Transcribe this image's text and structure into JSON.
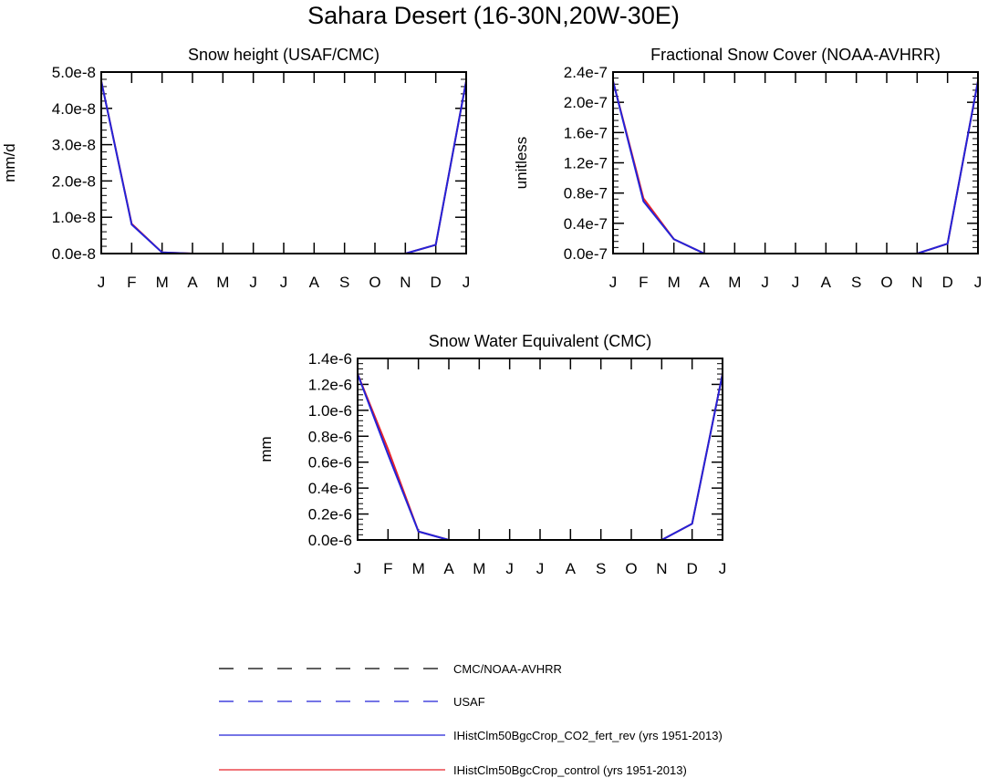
{
  "figure": {
    "title": "Sahara Desert (16-30N,20W-30E)"
  },
  "chart_data": [
    {
      "type": "line",
      "title": "Snow height (USAF/CMC)",
      "ylabel": "mm/d",
      "xlabel": "",
      "categories": [
        "J",
        "F",
        "M",
        "A",
        "M",
        "J",
        "J",
        "A",
        "S",
        "O",
        "N",
        "D",
        "J"
      ],
      "ylim": [
        0,
        5e-08
      ],
      "yticks": [
        0,
        1e-08,
        2e-08,
        3e-08,
        4e-08,
        5e-08
      ],
      "ytick_labels": [
        "0.0e-8",
        "1.0e-8",
        "2.0e-8",
        "3.0e-8",
        "4.0e-8",
        "5.0e-8"
      ],
      "series": [
        {
          "name": "CMC/NOAA-AVHRR",
          "values": [
            0,
            0,
            0,
            0,
            0,
            0,
            0,
            0,
            0,
            0,
            0,
            0,
            0
          ]
        },
        {
          "name": "IHistClm50BgcCrop_control (yrs 1951-2013)",
          "values": [
            4.75e-08,
            8.2e-09,
            3e-10,
            0,
            0,
            0,
            0,
            0,
            0,
            0,
            0,
            2.4e-09,
            4.75e-08
          ]
        },
        {
          "name": "IHistClm50BgcCrop_CO2_fert_rev (yrs 1951-2013)",
          "values": [
            4.75e-08,
            8e-09,
            3e-10,
            0,
            0,
            0,
            0,
            0,
            0,
            0,
            0,
            2.4e-09,
            4.75e-08
          ]
        }
      ]
    },
    {
      "type": "line",
      "title": "Fractional Snow Cover (NOAA-AVHRR)",
      "ylabel": "unitless",
      "xlabel": "",
      "categories": [
        "J",
        "F",
        "M",
        "A",
        "M",
        "J",
        "J",
        "A",
        "S",
        "O",
        "N",
        "D",
        "J"
      ],
      "ylim": [
        0,
        2.4e-07
      ],
      "yticks": [
        0,
        4e-08,
        8e-08,
        1.2e-07,
        1.6e-07,
        2e-07,
        2.4e-07
      ],
      "ytick_labels": [
        "0.0e-7",
        "0.4e-7",
        "0.8e-7",
        "1.2e-7",
        "1.6e-7",
        "2.0e-7",
        "2.4e-7"
      ],
      "series": [
        {
          "name": "CMC/NOAA-AVHRR",
          "values": [
            0,
            0,
            0,
            0,
            0,
            0,
            0,
            0,
            0,
            0,
            0,
            0,
            0
          ]
        },
        {
          "name": "IHistClm50BgcCrop_control (yrs 1951-2013)",
          "values": [
            2.28e-07,
            7.3e-08,
            1.9e-08,
            0,
            0,
            0,
            0,
            0,
            0,
            0,
            0,
            1.3e-08,
            2.28e-07
          ]
        },
        {
          "name": "IHistClm50BgcCrop_CO2_fert_rev (yrs 1951-2013)",
          "values": [
            2.28e-07,
            6.9e-08,
            1.9e-08,
            0,
            0,
            0,
            0,
            0,
            0,
            0,
            0,
            1.3e-08,
            2.28e-07
          ]
        }
      ]
    },
    {
      "type": "line",
      "title": "Snow Water Equivalent (CMC)",
      "ylabel": "mm",
      "xlabel": "",
      "categories": [
        "J",
        "F",
        "M",
        "A",
        "M",
        "J",
        "J",
        "A",
        "S",
        "O",
        "N",
        "D",
        "J"
      ],
      "ylim": [
        0,
        1.4e-06
      ],
      "yticks": [
        0,
        2e-07,
        4e-07,
        6e-07,
        8e-07,
        1e-06,
        1.2e-06,
        1.4e-06
      ],
      "ytick_labels": [
        "0.0e-6",
        "0.2e-6",
        "0.4e-6",
        "0.6e-6",
        "0.8e-6",
        "1.0e-6",
        "1.2e-6",
        "1.4e-6"
      ],
      "series": [
        {
          "name": "CMC/NOAA-AVHRR",
          "values": [
            0,
            0,
            0,
            0,
            0,
            0,
            0,
            0,
            0,
            0,
            0,
            0,
            0
          ]
        },
        {
          "name": "IHistClm50BgcCrop_control (yrs 1951-2013)",
          "values": [
            1.28e-06,
            7e-07,
            6.5e-08,
            0,
            0,
            0,
            0,
            0,
            0,
            0,
            0,
            1.25e-07,
            1.28e-06
          ]
        },
        {
          "name": "IHistClm50BgcCrop_CO2_fert_rev (yrs 1951-2013)",
          "values": [
            1.28e-06,
            6.6e-07,
            6.5e-08,
            0,
            0,
            0,
            0,
            0,
            0,
            0,
            0,
            1.25e-07,
            1.28e-06
          ]
        }
      ]
    }
  ],
  "legend": {
    "placement": "bottom-center",
    "entries": [
      {
        "label": "CMC/NOAA-AVHRR",
        "color": "#000000",
        "style": "dashed"
      },
      {
        "label": "USAF",
        "color": "#2323d8",
        "style": "dashed"
      },
      {
        "label": "IHistClm50BgcCrop_CO2_fert_rev (yrs 1951-2013)",
        "color": "#2323d8",
        "style": "solid"
      },
      {
        "label": "IHistClm50BgcCrop_control (yrs 1951-2013)",
        "color": "#e8232a",
        "style": "solid"
      }
    ]
  },
  "colors": {
    "obs": "#000000",
    "control": "#e8232a",
    "co2_fert_rev": "#2323d8"
  }
}
